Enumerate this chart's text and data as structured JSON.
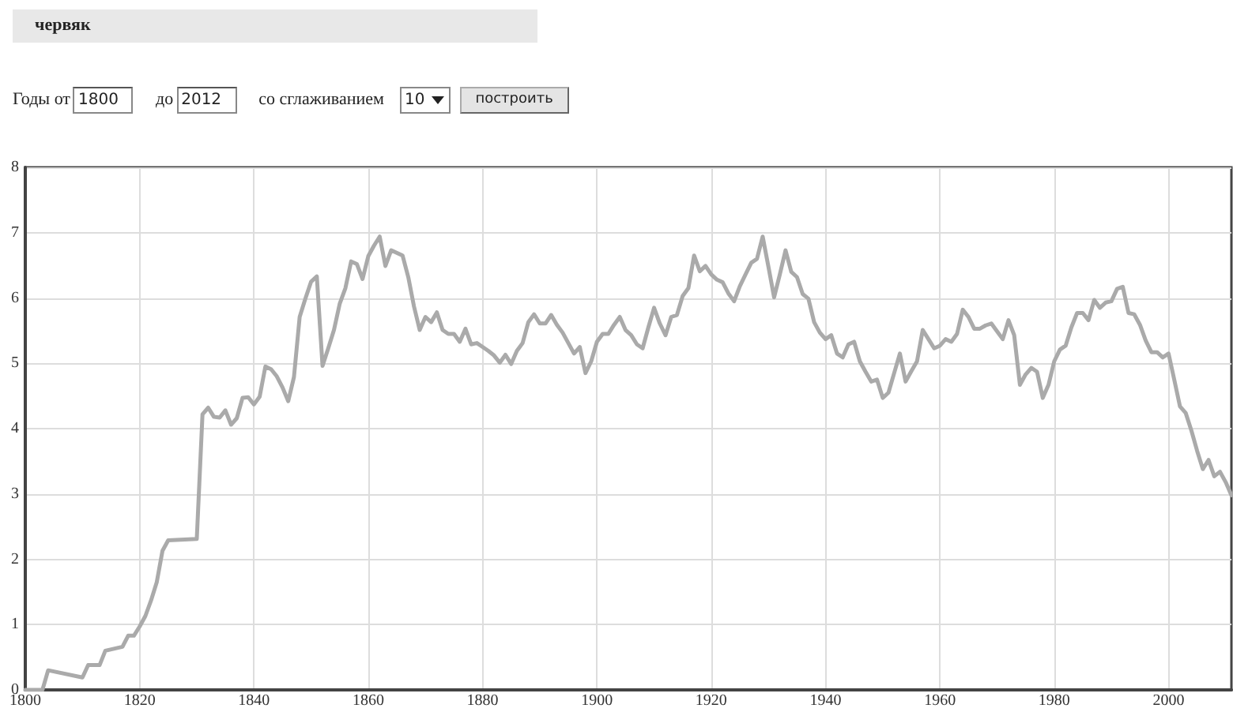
{
  "chart_data": {
    "type": "line",
    "title": "червяк",
    "annotations": [
      "Годы от",
      "1800",
      "до",
      "2012",
      "со сглаживанием",
      "10",
      "построить"
    ],
    "x": [
      1800,
      1803,
      1804,
      1810,
      1811,
      1813,
      1814,
      1817,
      1818,
      1819,
      1820,
      1821,
      1822,
      1823,
      1824,
      1825,
      1830,
      1831,
      1832,
      1833,
      1834,
      1835,
      1836,
      1837,
      1838,
      1839,
      1840,
      1841,
      1842,
      1843,
      1844,
      1845,
      1846,
      1847,
      1848,
      1849,
      1850,
      1851,
      1852,
      1853,
      1854,
      1855,
      1856,
      1857,
      1858,
      1859,
      1860,
      1861,
      1862,
      1863,
      1864,
      1866,
      1867,
      1868,
      1869,
      1870,
      1871,
      1872,
      1873,
      1874,
      1875,
      1876,
      1877,
      1878,
      1879,
      1880,
      1881,
      1882,
      1883,
      1884,
      1885,
      1886,
      1887,
      1888,
      1889,
      1890,
      1891,
      1892,
      1893,
      1894,
      1895,
      1896,
      1897,
      1898,
      1899,
      1900,
      1901,
      1902,
      1903,
      1904,
      1905,
      1906,
      1907,
      1908,
      1909,
      1910,
      1911,
      1912,
      1913,
      1914,
      1915,
      1916,
      1917,
      1918,
      1919,
      1920,
      1921,
      1922,
      1923,
      1924,
      1925,
      1926,
      1927,
      1928,
      1929,
      1930,
      1931,
      1932,
      1933,
      1934,
      1935,
      1936,
      1937,
      1938,
      1939,
      1940,
      1941,
      1942,
      1943,
      1944,
      1945,
      1946,
      1947,
      1948,
      1949,
      1950,
      1951,
      1952,
      1953,
      1954,
      1955,
      1956,
      1957,
      1958,
      1959,
      1960,
      1961,
      1962,
      1963,
      1964,
      1965,
      1966,
      1967,
      1968,
      1969,
      1970,
      1971,
      1972,
      1973,
      1974,
      1975,
      1976,
      1977,
      1978,
      1979,
      1980,
      1981,
      1982,
      1983,
      1984,
      1985,
      1986,
      1987,
      1988,
      1989,
      1990,
      1991,
      1992,
      1993,
      1994,
      1995,
      1996,
      1997,
      1998,
      1999,
      2000,
      2001,
      2002,
      2003,
      2004,
      2005,
      2006,
      2007,
      2008,
      2009,
      2010,
      2011
    ],
    "series": [
      {
        "color": "#aaaaaa",
        "values": [
          0,
          0,
          0.3,
          0.19,
          0.38,
          0.38,
          0.6,
          0.66,
          0.83,
          0.83,
          0.97,
          1.13,
          1.37,
          1.65,
          2.13,
          2.29,
          2.31,
          4.22,
          4.32,
          4.18,
          4.17,
          4.28,
          4.06,
          4.16,
          4.47,
          4.48,
          4.37,
          4.49,
          4.95,
          4.91,
          4.8,
          4.63,
          4.42,
          4.79,
          5.71,
          5.99,
          6.25,
          6.33,
          4.96,
          5.23,
          5.51,
          5.91,
          6.15,
          6.56,
          6.52,
          6.29,
          6.64,
          6.8,
          6.94,
          6.49,
          6.73,
          6.65,
          6.32,
          5.87,
          5.51,
          5.71,
          5.63,
          5.78,
          5.51,
          5.45,
          5.45,
          5.33,
          5.53,
          5.29,
          5.31,
          5.25,
          5.19,
          5.12,
          5.01,
          5.13,
          4.99,
          5.19,
          5.31,
          5.63,
          5.75,
          5.61,
          5.61,
          5.74,
          5.59,
          5.47,
          5.31,
          5.15,
          5.25,
          4.85,
          5.03,
          5.33,
          5.45,
          5.45,
          5.59,
          5.71,
          5.51,
          5.43,
          5.29,
          5.23,
          5.55,
          5.85,
          5.61,
          5.43,
          5.71,
          5.74,
          6.03,
          6.15,
          6.65,
          6.41,
          6.49,
          6.36,
          6.28,
          6.24,
          6.07,
          5.95,
          6.18,
          6.36,
          6.54,
          6.6,
          6.94,
          6.48,
          6.01,
          6.36,
          6.73,
          6.4,
          6.32,
          6.06,
          5.99,
          5.63,
          5.47,
          5.37,
          5.43,
          5.15,
          5.09,
          5.29,
          5.33,
          5.03,
          4.87,
          4.72,
          4.75,
          4.47,
          4.55,
          4.85,
          5.15,
          4.72,
          4.88,
          5.03,
          5.51,
          5.37,
          5.23,
          5.27,
          5.37,
          5.33,
          5.45,
          5.82,
          5.71,
          5.53,
          5.53,
          5.58,
          5.61,
          5.49,
          5.37,
          5.66,
          5.43,
          4.67,
          4.83,
          4.93,
          4.87,
          4.47,
          4.67,
          5.03,
          5.21,
          5.27,
          5.55,
          5.77,
          5.77,
          5.66,
          5.97,
          5.85,
          5.93,
          5.95,
          6.14,
          6.17,
          5.77,
          5.75,
          5.59,
          5.35,
          5.17,
          5.17,
          5.09,
          5.15,
          4.75,
          4.34,
          4.24,
          3.97,
          3.66,
          3.38,
          3.52,
          3.27,
          3.34,
          3.18,
          2.98
        ]
      }
    ],
    "xlim": [
      1800,
      2011
    ],
    "xticks": [
      1800,
      1820,
      1840,
      1860,
      1880,
      1900,
      1920,
      1940,
      1960,
      1980,
      2000
    ],
    "ylim": [
      0,
      8
    ],
    "yticks": [
      0,
      1,
      2,
      3,
      4,
      5,
      6,
      7,
      8
    ],
    "grid": true,
    "marker": "none",
    "line_style": "solid"
  }
}
